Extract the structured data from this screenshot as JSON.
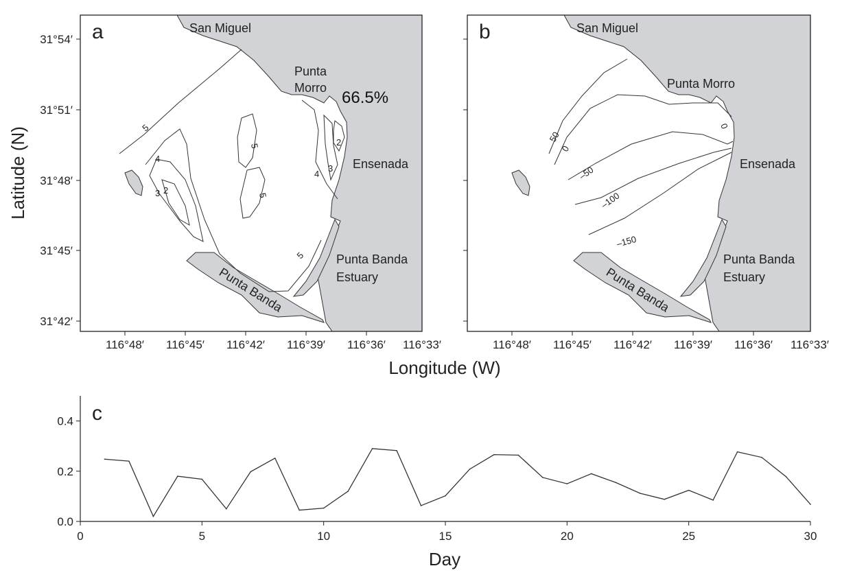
{
  "colors": {
    "land": "#d1d3d6",
    "line": "#333333",
    "frame": "#222222"
  },
  "maps": {
    "y_axis_title": "Latitude (N)",
    "x_axis_title": "Longitude (W)",
    "lat_ticks": [
      "31°54′",
      "31°51′",
      "31°48′",
      "31°45′",
      "31°42′"
    ],
    "lon_ticks": [
      "116°48′",
      "116°45′",
      "116°42′",
      "116°39′",
      "116°36′",
      "116°33′"
    ],
    "panel_a": {
      "letter": "a",
      "places": {
        "san_miguel": "San Miguel",
        "punta_morro_1": "Punta",
        "punta_morro_2": "Morro",
        "ensenada": "Ensenada",
        "estuary_1": "Punta Banda",
        "estuary_2": "Estuary",
        "punta_banda": "Punta Banda"
      },
      "percentage": "66.5%",
      "contour_labels": [
        "5",
        "4",
        "3",
        "2",
        "5",
        "5",
        "2",
        "3",
        "4",
        "5"
      ]
    },
    "panel_b": {
      "letter": "b",
      "places": {
        "san_miguel": "San Miguel",
        "punta_morro": "Punta Morro",
        "ensenada": "Ensenada",
        "estuary_1": "Punta Banda",
        "estuary_2": "Estuary",
        "punta_banda": "Punta Banda"
      },
      "contour_labels": [
        "50",
        "0",
        "0",
        "–50",
        "–100",
        "–150"
      ]
    }
  },
  "chart_data": {
    "type": "line",
    "panel_letter": "c",
    "xlabel": "Day",
    "ylabel": "",
    "xlim": [
      0,
      30
    ],
    "ylim": [
      0,
      0.5
    ],
    "x_ticks": [
      0,
      5,
      10,
      15,
      20,
      25,
      30
    ],
    "y_ticks": [
      "0.0",
      "0.2",
      "0.4"
    ],
    "series": [
      {
        "x": [
          1,
          2,
          3,
          4,
          5,
          6,
          7,
          8,
          9,
          10,
          11,
          12,
          13,
          14,
          15,
          16,
          17,
          18,
          19,
          20,
          21,
          22,
          23,
          24,
          25,
          26,
          27,
          28,
          29,
          30
        ],
        "values": [
          0.248,
          0.24,
          0.02,
          0.18,
          0.168,
          0.05,
          0.198,
          0.252,
          0.045,
          0.053,
          0.12,
          0.29,
          0.282,
          0.063,
          0.102,
          0.208,
          0.266,
          0.264,
          0.175,
          0.15,
          0.19,
          0.155,
          0.112,
          0.088,
          0.124,
          0.085,
          0.277,
          0.255,
          0.178,
          0.068
        ]
      }
    ]
  }
}
